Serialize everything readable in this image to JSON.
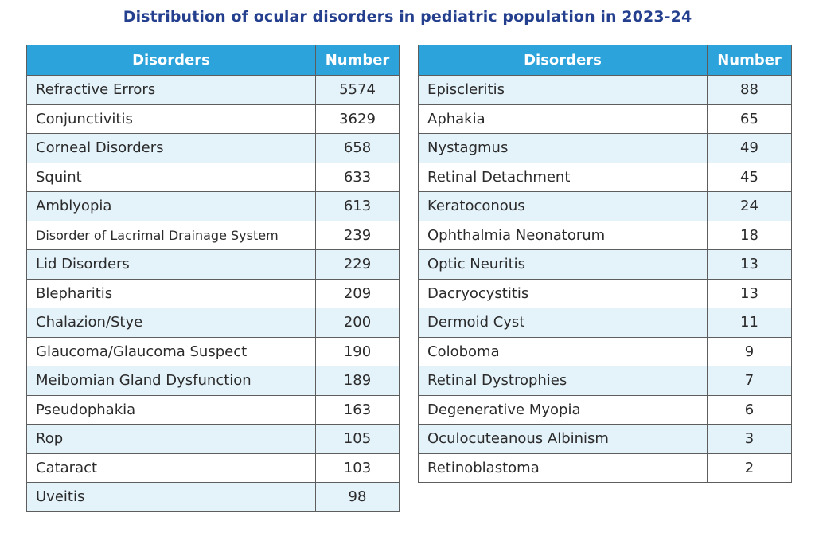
{
  "title": "Distribution of ocular disorders in pediatric population in 2023-24",
  "headers": {
    "disorders": "Disorders",
    "number": "Number"
  },
  "left_table": {
    "rows": [
      {
        "disorder": "Refractive Errors",
        "number": "5574"
      },
      {
        "disorder": "Conjunctivitis",
        "number": "3629"
      },
      {
        "disorder": "Corneal Disorders",
        "number": "658"
      },
      {
        "disorder": "Squint",
        "number": "633"
      },
      {
        "disorder": "Amblyopia",
        "number": "613"
      },
      {
        "disorder": "Disorder of Lacrimal Drainage System",
        "number": "239"
      },
      {
        "disorder": "Lid Disorders",
        "number": "229"
      },
      {
        "disorder": "Blepharitis",
        "number": "209"
      },
      {
        "disorder": "Chalazion/Stye",
        "number": "200"
      },
      {
        "disorder": "Glaucoma/Glaucoma Suspect",
        "number": "190"
      },
      {
        "disorder": "Meibomian Gland Dysfunction",
        "number": "189"
      },
      {
        "disorder": "Pseudophakia",
        "number": "163"
      },
      {
        "disorder": "Rop",
        "number": "105"
      },
      {
        "disorder": "Cataract",
        "number": "103"
      },
      {
        "disorder": "Uveitis",
        "number": "98"
      }
    ]
  },
  "right_table": {
    "rows": [
      {
        "disorder": "Episcleritis",
        "number": "88"
      },
      {
        "disorder": "Aphakia",
        "number": "65"
      },
      {
        "disorder": "Nystagmus",
        "number": "49"
      },
      {
        "disorder": "Retinal Detachment",
        "number": "45"
      },
      {
        "disorder": "Keratoconous",
        "number": "24"
      },
      {
        "disorder": "Ophthalmia Neonatorum",
        "number": "18"
      },
      {
        "disorder": "Optic Neuritis",
        "number": "13"
      },
      {
        "disorder": "Dacryocystitis",
        "number": "13"
      },
      {
        "disorder": "Dermoid Cyst",
        "number": "11"
      },
      {
        "disorder": "Coloboma",
        "number": "9"
      },
      {
        "disorder": "Retinal Dystrophies",
        "number": "7"
      },
      {
        "disorder": "Degenerative Myopia",
        "number": "6"
      },
      {
        "disorder": "Oculocuteanous Albinism",
        "number": "3"
      },
      {
        "disorder": "Retinoblastoma",
        "number": "2"
      }
    ]
  },
  "colors": {
    "header_bg": "#2da3dc",
    "title": "#233f8e",
    "stripe": "#e4f2fa"
  }
}
